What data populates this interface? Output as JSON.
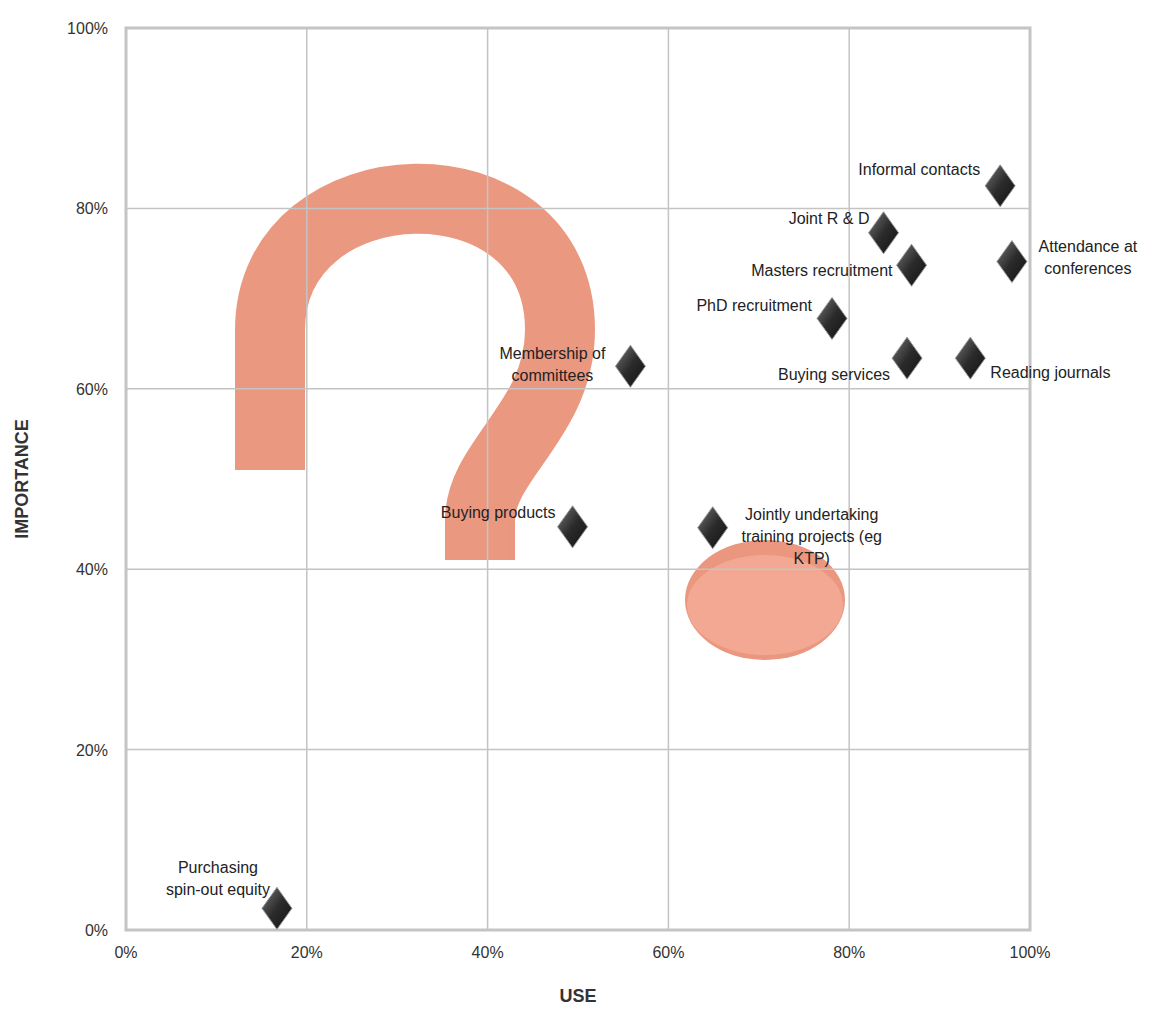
{
  "chart_data": {
    "type": "scatter",
    "x_label": "USE",
    "y_label": "IMPORTANCE",
    "labels": [
      "Informal contacts",
      "Joint R & D",
      "Masters recruitment",
      "Attendance at\nconferences",
      "PhD recruitment",
      "Membership of\ncommittees",
      "Buying services",
      "Reading journals",
      "Buying products",
      "Jointly undertaking\ntraining projects (eg\nKTP)",
      "Purchasing\nspin-out equity"
    ],
    "x": [
      96.7,
      83.8,
      86.9,
      98.0,
      78.1,
      55.8,
      86.4,
      93.4,
      49.4,
      64.9,
      16.7
    ],
    "values": [
      82.5,
      77.3,
      73.7,
      74.1,
      67.8,
      62.5,
      63.4,
      63.4,
      44.7,
      44.6,
      2.4
    ],
    "xlim": [
      0,
      100
    ],
    "ylim": [
      0,
      100
    ],
    "xticks": [
      {
        "value": 0,
        "label": "0%"
      },
      {
        "value": 20,
        "label": "20%"
      },
      {
        "value": 40,
        "label": "40%"
      },
      {
        "value": 60,
        "label": "60%"
      },
      {
        "value": 80,
        "label": "80%"
      },
      {
        "value": 100,
        "label": "100%"
      }
    ],
    "yticks": [
      {
        "value": 0,
        "label": "0%"
      },
      {
        "value": 20,
        "label": "20%"
      },
      {
        "value": 40,
        "label": "40%"
      },
      {
        "value": 60,
        "label": "60%"
      },
      {
        "value": 80,
        "label": "80%"
      },
      {
        "value": 100,
        "label": "100%"
      }
    ],
    "grid": true,
    "marker": "diamond",
    "color": "#2b2b2b"
  }
}
